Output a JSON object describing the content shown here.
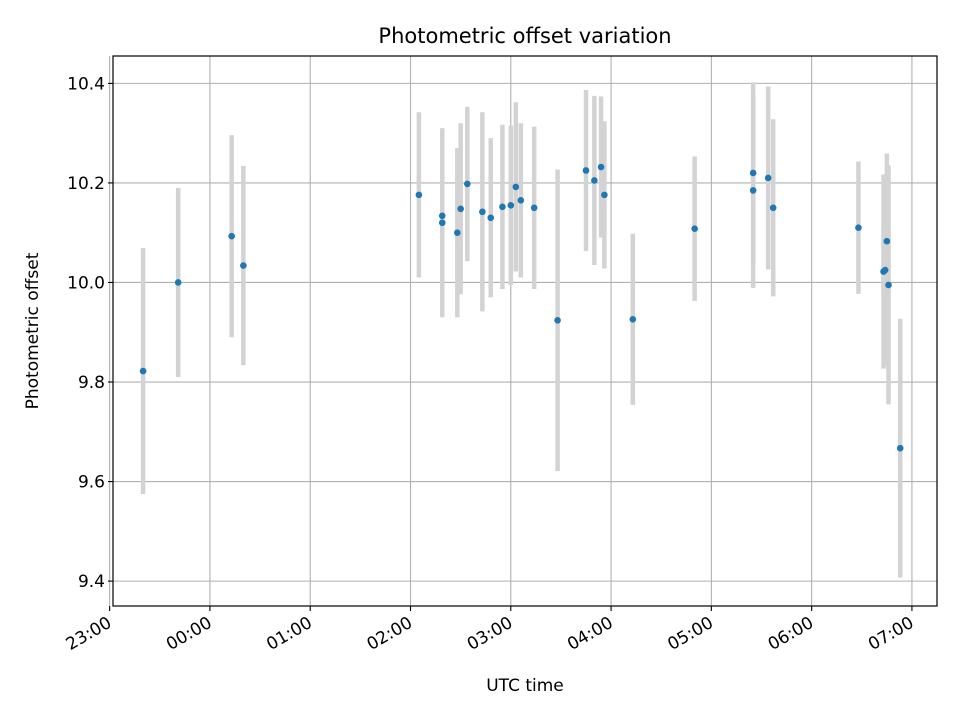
{
  "chart_data": {
    "type": "scatter",
    "title": "Photometric offset variation",
    "xlabel": "UTC time",
    "ylabel": "Photometric offset",
    "x_axis_type": "time",
    "xlim": [
      "-00:58",
      "07:15"
    ],
    "ylim": [
      9.35,
      10.455
    ],
    "grid": true,
    "x_ticks": [
      "23:00",
      "00:00",
      "01:00",
      "02:00",
      "03:00",
      "04:00",
      "05:00",
      "06:00",
      "07:00"
    ],
    "y_ticks": [
      "9.4",
      "9.6",
      "9.8",
      "10.0",
      "10.2",
      "10.4"
    ],
    "y_tick_values": [
      9.4,
      9.6,
      9.8,
      10.0,
      10.2,
      10.4
    ],
    "colors": {
      "point": "#1f77b4",
      "errorbar": "#d3d3d3",
      "grid": "#b0b0b0"
    },
    "points": [
      {
        "x": "23:20",
        "y": 9.822,
        "yerr": 0.247
      },
      {
        "x": "23:41",
        "y": 10.0,
        "yerr": 0.19
      },
      {
        "x": "00:13",
        "y": 10.093,
        "yerr": 0.203
      },
      {
        "x": "00:20",
        "y": 10.034,
        "yerr": 0.2
      },
      {
        "x": "02:05",
        "y": 10.176,
        "yerr": 0.166
      },
      {
        "x": "02:19",
        "y": 10.134,
        "yerr": 0.09
      },
      {
        "x": "02:19",
        "y": 10.12,
        "yerr": 0.19
      },
      {
        "x": "02:28",
        "y": 10.1,
        "yerr": 0.17
      },
      {
        "x": "02:30",
        "y": 10.148,
        "yerr": 0.172
      },
      {
        "x": "02:34",
        "y": 10.198,
        "yerr": 0.155
      },
      {
        "x": "02:43",
        "y": 10.142,
        "yerr": 0.2
      },
      {
        "x": "02:48",
        "y": 10.13,
        "yerr": 0.16
      },
      {
        "x": "02:55",
        "y": 10.152,
        "yerr": 0.165
      },
      {
        "x": "03:00",
        "y": 10.155,
        "yerr": 0.16
      },
      {
        "x": "03:03",
        "y": 10.192,
        "yerr": 0.17
      },
      {
        "x": "03:06",
        "y": 10.165,
        "yerr": 0.155
      },
      {
        "x": "03:14",
        "y": 10.15,
        "yerr": 0.163
      },
      {
        "x": "03:28",
        "y": 9.924,
        "yerr": 0.303
      },
      {
        "x": "03:45",
        "y": 10.225,
        "yerr": 0.162
      },
      {
        "x": "03:50",
        "y": 10.205,
        "yerr": 0.17
      },
      {
        "x": "03:54",
        "y": 10.232,
        "yerr": 0.142
      },
      {
        "x": "03:56",
        "y": 10.176,
        "yerr": 0.148
      },
      {
        "x": "04:13",
        "y": 9.926,
        "yerr": 0.172
      },
      {
        "x": "04:50",
        "y": 10.108,
        "yerr": 0.145
      },
      {
        "x": "05:25",
        "y": 10.185,
        "yerr": 0.196
      },
      {
        "x": "05:25",
        "y": 10.22,
        "yerr": 0.182
      },
      {
        "x": "05:34",
        "y": 10.21,
        "yerr": 0.184
      },
      {
        "x": "05:37",
        "y": 10.15,
        "yerr": 0.178
      },
      {
        "x": "06:28",
        "y": 10.11,
        "yerr": 0.133
      },
      {
        "x": "06:43",
        "y": 10.022,
        "yerr": 0.195
      },
      {
        "x": "06:44",
        "y": 10.025,
        "yerr": 0.192
      },
      {
        "x": "06:45",
        "y": 10.083,
        "yerr": 0.176
      },
      {
        "x": "06:46",
        "y": 9.995,
        "yerr": 0.24
      },
      {
        "x": "06:53",
        "y": 9.667,
        "yerr": 0.26
      }
    ]
  }
}
